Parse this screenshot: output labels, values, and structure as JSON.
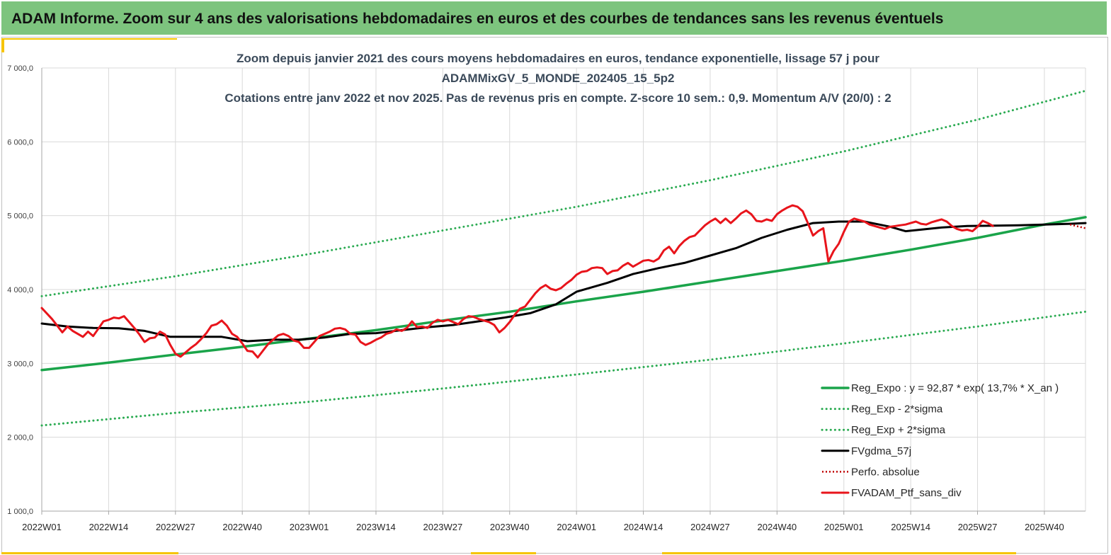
{
  "header": {
    "title": "ADAM Informe. Zoom sur 4 ans des valorisations hebdomadaires en euros et des courbes de tendances sans les revenus éventuels"
  },
  "colors": {
    "banner": "#7dc47e",
    "trend": "#1aa44a",
    "band": "#2bab52",
    "mma": "#000000",
    "price": "#e8141b",
    "perf": "#c00000"
  },
  "chart_data": {
    "type": "line",
    "title_lines": [
      "Zoom depuis janvier 2021 des cours moyens hebdomadaires  en euros, tendance exponentielle, lissage 57 j pour",
      "ADAMMixGV_5_MONDE_202405_15_5p2",
      "Cotations entre janv 2022 et nov 2025. Pas de revenus pris en compte. Z-score 10 sem.: 0,9. Momentum A/V (20/0) : 2"
    ],
    "ylim": [
      1000,
      7000
    ],
    "yticks": [
      {
        "value": 1000,
        "label": "1 000,0"
      },
      {
        "value": 2000,
        "label": "2 000,0"
      },
      {
        "value": 3000,
        "label": "3 000,0"
      },
      {
        "value": 4000,
        "label": "4 000,0"
      },
      {
        "value": 5000,
        "label": "5 000,0"
      },
      {
        "value": 6000,
        "label": "6 000,0"
      },
      {
        "value": 7000,
        "label": "7 000,0"
      }
    ],
    "x_range": [
      0,
      203
    ],
    "xticks": [
      {
        "index": 0,
        "label": "2022W01"
      },
      {
        "index": 13,
        "label": "2022W14"
      },
      {
        "index": 26,
        "label": "2022W27"
      },
      {
        "index": 39,
        "label": "2022W40"
      },
      {
        "index": 52,
        "label": "2023W01"
      },
      {
        "index": 65,
        "label": "2023W14"
      },
      {
        "index": 78,
        "label": "2023W27"
      },
      {
        "index": 91,
        "label": "2023W40"
      },
      {
        "index": 104,
        "label": "2024W01"
      },
      {
        "index": 117,
        "label": "2024W14"
      },
      {
        "index": 130,
        "label": "2024W27"
      },
      {
        "index": 143,
        "label": "2024W40"
      },
      {
        "index": 156,
        "label": "2025W01"
      },
      {
        "index": 169,
        "label": "2025W14"
      },
      {
        "index": 182,
        "label": "2025W27"
      },
      {
        "index": 195,
        "label": "2025W40"
      }
    ],
    "series": [
      {
        "name": "Reg_Expo : y = 92,87 * exp( 13,7% *  X_an )",
        "style": "trend",
        "points": [
          [
            0,
            2910
          ],
          [
            13,
            3010
          ],
          [
            26,
            3120
          ],
          [
            39,
            3225
          ],
          [
            52,
            3335
          ],
          [
            65,
            3450
          ],
          [
            78,
            3580
          ],
          [
            91,
            3700
          ],
          [
            104,
            3840
          ],
          [
            117,
            3970
          ],
          [
            130,
            4110
          ],
          [
            143,
            4250
          ],
          [
            156,
            4390
          ],
          [
            169,
            4540
          ],
          [
            182,
            4700
          ],
          [
            195,
            4880
          ],
          [
            203,
            4980
          ]
        ]
      },
      {
        "name": "Reg_Exp - 2*sigma",
        "style": "band",
        "points": [
          [
            0,
            2160
          ],
          [
            26,
            2330
          ],
          [
            52,
            2480
          ],
          [
            78,
            2660
          ],
          [
            104,
            2850
          ],
          [
            130,
            3050
          ],
          [
            156,
            3270
          ],
          [
            182,
            3500
          ],
          [
            203,
            3700
          ]
        ]
      },
      {
        "name": "Reg_Exp + 2*sigma",
        "style": "band",
        "points": [
          [
            0,
            3910
          ],
          [
            26,
            4180
          ],
          [
            52,
            4480
          ],
          [
            78,
            4800
          ],
          [
            104,
            5120
          ],
          [
            130,
            5480
          ],
          [
            156,
            5870
          ],
          [
            182,
            6300
          ],
          [
            203,
            6690
          ]
        ]
      },
      {
        "name": "FVgdma_57j",
        "style": "mma",
        "points": [
          [
            0,
            3540
          ],
          [
            5,
            3500
          ],
          [
            10,
            3480
          ],
          [
            15,
            3475
          ],
          [
            20,
            3440
          ],
          [
            25,
            3360
          ],
          [
            30,
            3360
          ],
          [
            35,
            3360
          ],
          [
            40,
            3300
          ],
          [
            45,
            3320
          ],
          [
            50,
            3320
          ],
          [
            55,
            3350
          ],
          [
            60,
            3400
          ],
          [
            65,
            3410
          ],
          [
            70,
            3450
          ],
          [
            75,
            3490
          ],
          [
            80,
            3520
          ],
          [
            85,
            3570
          ],
          [
            90,
            3620
          ],
          [
            95,
            3680
          ],
          [
            100,
            3800
          ],
          [
            104,
            3970
          ],
          [
            110,
            4090
          ],
          [
            115,
            4210
          ],
          [
            120,
            4290
          ],
          [
            125,
            4360
          ],
          [
            130,
            4460
          ],
          [
            135,
            4560
          ],
          [
            140,
            4700
          ],
          [
            145,
            4810
          ],
          [
            150,
            4900
          ],
          [
            155,
            4920
          ],
          [
            160,
            4920
          ],
          [
            165,
            4850
          ],
          [
            168,
            4790
          ],
          [
            175,
            4840
          ],
          [
            180,
            4860
          ],
          [
            190,
            4870
          ],
          [
            195,
            4880
          ],
          [
            200,
            4890
          ],
          [
            203,
            4900
          ]
        ]
      },
      {
        "name": "Perfo. absolue",
        "style": "perf",
        "points": [
          [
            200,
            4880
          ],
          [
            203,
            4830
          ]
        ]
      },
      {
        "name": "FVADAM_Ptf_sans_div",
        "style": "price",
        "points": [
          [
            0,
            3750
          ],
          [
            2,
            3600
          ],
          [
            3,
            3510
          ],
          [
            4,
            3420
          ],
          [
            5,
            3500
          ],
          [
            6,
            3440
          ],
          [
            7,
            3400
          ],
          [
            8,
            3360
          ],
          [
            9,
            3430
          ],
          [
            10,
            3370
          ],
          [
            11,
            3470
          ],
          [
            12,
            3570
          ],
          [
            13,
            3590
          ],
          [
            14,
            3620
          ],
          [
            15,
            3610
          ],
          [
            16,
            3640
          ],
          [
            17,
            3560
          ],
          [
            18,
            3480
          ],
          [
            19,
            3390
          ],
          [
            20,
            3290
          ],
          [
            21,
            3340
          ],
          [
            22,
            3350
          ],
          [
            23,
            3430
          ],
          [
            24,
            3390
          ],
          [
            25,
            3250
          ],
          [
            26,
            3130
          ],
          [
            27,
            3090
          ],
          [
            28,
            3150
          ],
          [
            29,
            3210
          ],
          [
            30,
            3260
          ],
          [
            31,
            3330
          ],
          [
            32,
            3410
          ],
          [
            33,
            3510
          ],
          [
            34,
            3530
          ],
          [
            35,
            3580
          ],
          [
            36,
            3510
          ],
          [
            37,
            3400
          ],
          [
            38,
            3360
          ],
          [
            39,
            3270
          ],
          [
            40,
            3170
          ],
          [
            41,
            3160
          ],
          [
            42,
            3080
          ],
          [
            43,
            3170
          ],
          [
            44,
            3260
          ],
          [
            45,
            3320
          ],
          [
            46,
            3380
          ],
          [
            47,
            3400
          ],
          [
            48,
            3370
          ],
          [
            49,
            3310
          ],
          [
            50,
            3290
          ],
          [
            51,
            3210
          ],
          [
            52,
            3210
          ],
          [
            53,
            3290
          ],
          [
            54,
            3370
          ],
          [
            55,
            3400
          ],
          [
            56,
            3430
          ],
          [
            57,
            3470
          ],
          [
            58,
            3480
          ],
          [
            59,
            3460
          ],
          [
            60,
            3400
          ],
          [
            61,
            3390
          ],
          [
            62,
            3290
          ],
          [
            63,
            3250
          ],
          [
            64,
            3280
          ],
          [
            65,
            3320
          ],
          [
            66,
            3350
          ],
          [
            67,
            3400
          ],
          [
            68,
            3420
          ],
          [
            69,
            3460
          ],
          [
            70,
            3440
          ],
          [
            71,
            3480
          ],
          [
            72,
            3570
          ],
          [
            73,
            3490
          ],
          [
            74,
            3500
          ],
          [
            75,
            3480
          ],
          [
            76,
            3550
          ],
          [
            77,
            3590
          ],
          [
            78,
            3570
          ],
          [
            79,
            3590
          ],
          [
            80,
            3560
          ],
          [
            81,
            3530
          ],
          [
            82,
            3600
          ],
          [
            83,
            3640
          ],
          [
            84,
            3630
          ],
          [
            85,
            3600
          ],
          [
            86,
            3580
          ],
          [
            87,
            3560
          ],
          [
            88,
            3520
          ],
          [
            89,
            3420
          ],
          [
            90,
            3480
          ],
          [
            91,
            3560
          ],
          [
            92,
            3660
          ],
          [
            93,
            3740
          ],
          [
            94,
            3770
          ],
          [
            95,
            3860
          ],
          [
            96,
            3950
          ],
          [
            97,
            4020
          ],
          [
            98,
            4060
          ],
          [
            99,
            4010
          ],
          [
            100,
            3990
          ],
          [
            101,
            4020
          ],
          [
            102,
            4080
          ],
          [
            103,
            4130
          ],
          [
            104,
            4200
          ],
          [
            105,
            4240
          ],
          [
            106,
            4250
          ],
          [
            107,
            4290
          ],
          [
            108,
            4300
          ],
          [
            109,
            4290
          ],
          [
            110,
            4210
          ],
          [
            111,
            4250
          ],
          [
            112,
            4260
          ],
          [
            113,
            4320
          ],
          [
            114,
            4360
          ],
          [
            115,
            4310
          ],
          [
            116,
            4350
          ],
          [
            117,
            4390
          ],
          [
            118,
            4400
          ],
          [
            119,
            4380
          ],
          [
            120,
            4420
          ],
          [
            121,
            4530
          ],
          [
            122,
            4580
          ],
          [
            123,
            4490
          ],
          [
            124,
            4590
          ],
          [
            125,
            4660
          ],
          [
            126,
            4710
          ],
          [
            127,
            4730
          ],
          [
            128,
            4800
          ],
          [
            129,
            4870
          ],
          [
            130,
            4920
          ],
          [
            131,
            4960
          ],
          [
            132,
            4900
          ],
          [
            133,
            4960
          ],
          [
            134,
            4900
          ],
          [
            135,
            4960
          ],
          [
            136,
            5030
          ],
          [
            137,
            5070
          ],
          [
            138,
            5020
          ],
          [
            139,
            4930
          ],
          [
            140,
            4920
          ],
          [
            141,
            4950
          ],
          [
            142,
            4930
          ],
          [
            143,
            5020
          ],
          [
            144,
            5070
          ],
          [
            145,
            5110
          ],
          [
            146,
            5140
          ],
          [
            147,
            5120
          ],
          [
            148,
            5060
          ],
          [
            149,
            4900
          ],
          [
            150,
            4730
          ],
          [
            151,
            4790
          ],
          [
            152,
            4830
          ],
          [
            153,
            4380
          ],
          [
            154,
            4520
          ],
          [
            155,
            4620
          ],
          [
            156,
            4780
          ],
          [
            157,
            4920
          ],
          [
            158,
            4960
          ],
          [
            159,
            4940
          ],
          [
            160,
            4920
          ],
          [
            161,
            4880
          ],
          [
            162,
            4860
          ],
          [
            163,
            4840
          ],
          [
            164,
            4820
          ],
          [
            165,
            4850
          ],
          [
            166,
            4860
          ],
          [
            167,
            4870
          ],
          [
            168,
            4880
          ],
          [
            169,
            4900
          ],
          [
            170,
            4920
          ],
          [
            171,
            4890
          ],
          [
            172,
            4880
          ],
          [
            173,
            4910
          ],
          [
            174,
            4930
          ],
          [
            175,
            4950
          ],
          [
            176,
            4920
          ],
          [
            177,
            4860
          ],
          [
            178,
            4820
          ],
          [
            179,
            4800
          ],
          [
            180,
            4810
          ],
          [
            181,
            4790
          ],
          [
            182,
            4850
          ],
          [
            183,
            4930
          ],
          [
            184,
            4900
          ],
          [
            185,
            4860
          ]
        ]
      }
    ],
    "legend": {
      "position": "bottom-right",
      "entries": [
        {
          "label": "Reg_Expo : y = 92,87 * exp( 13,7% *  X_an )",
          "style": "trend"
        },
        {
          "label": "Reg_Exp - 2*sigma",
          "style": "band"
        },
        {
          "label": "Reg_Exp + 2*sigma",
          "style": "band"
        },
        {
          "label": "FVgdma_57j",
          "style": "mma"
        },
        {
          "label": "Perfo. absolue",
          "style": "perf"
        },
        {
          "label": "FVADAM_Ptf_sans_div",
          "style": "price"
        }
      ]
    }
  }
}
